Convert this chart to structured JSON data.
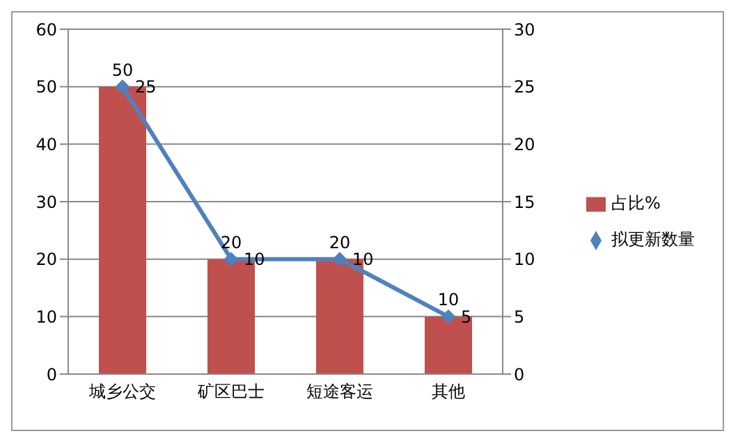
{
  "chart_data": {
    "type": "bar",
    "categories": [
      "城乡公交",
      "矿区巴士",
      "短途客运",
      "其他"
    ],
    "series": [
      {
        "name": "占比%",
        "color": "#c0504d",
        "values": [
          50,
          20,
          20,
          10
        ]
      },
      {
        "name": "拟更新数量",
        "type": "line",
        "axis": "y2",
        "color": "#4f81bd",
        "values": [
          25,
          10,
          10,
          5
        ],
        "marker": "diamond"
      }
    ],
    "ylim": [
      0,
      60
    ],
    "yticks": [
      0,
      10,
      20,
      30,
      40,
      50,
      60
    ],
    "y2lim": [
      0,
      30
    ],
    "y2ticks": [
      0,
      5,
      10,
      15,
      20,
      25,
      30
    ],
    "grid": "y",
    "legend": "right",
    "data_labels": true
  }
}
